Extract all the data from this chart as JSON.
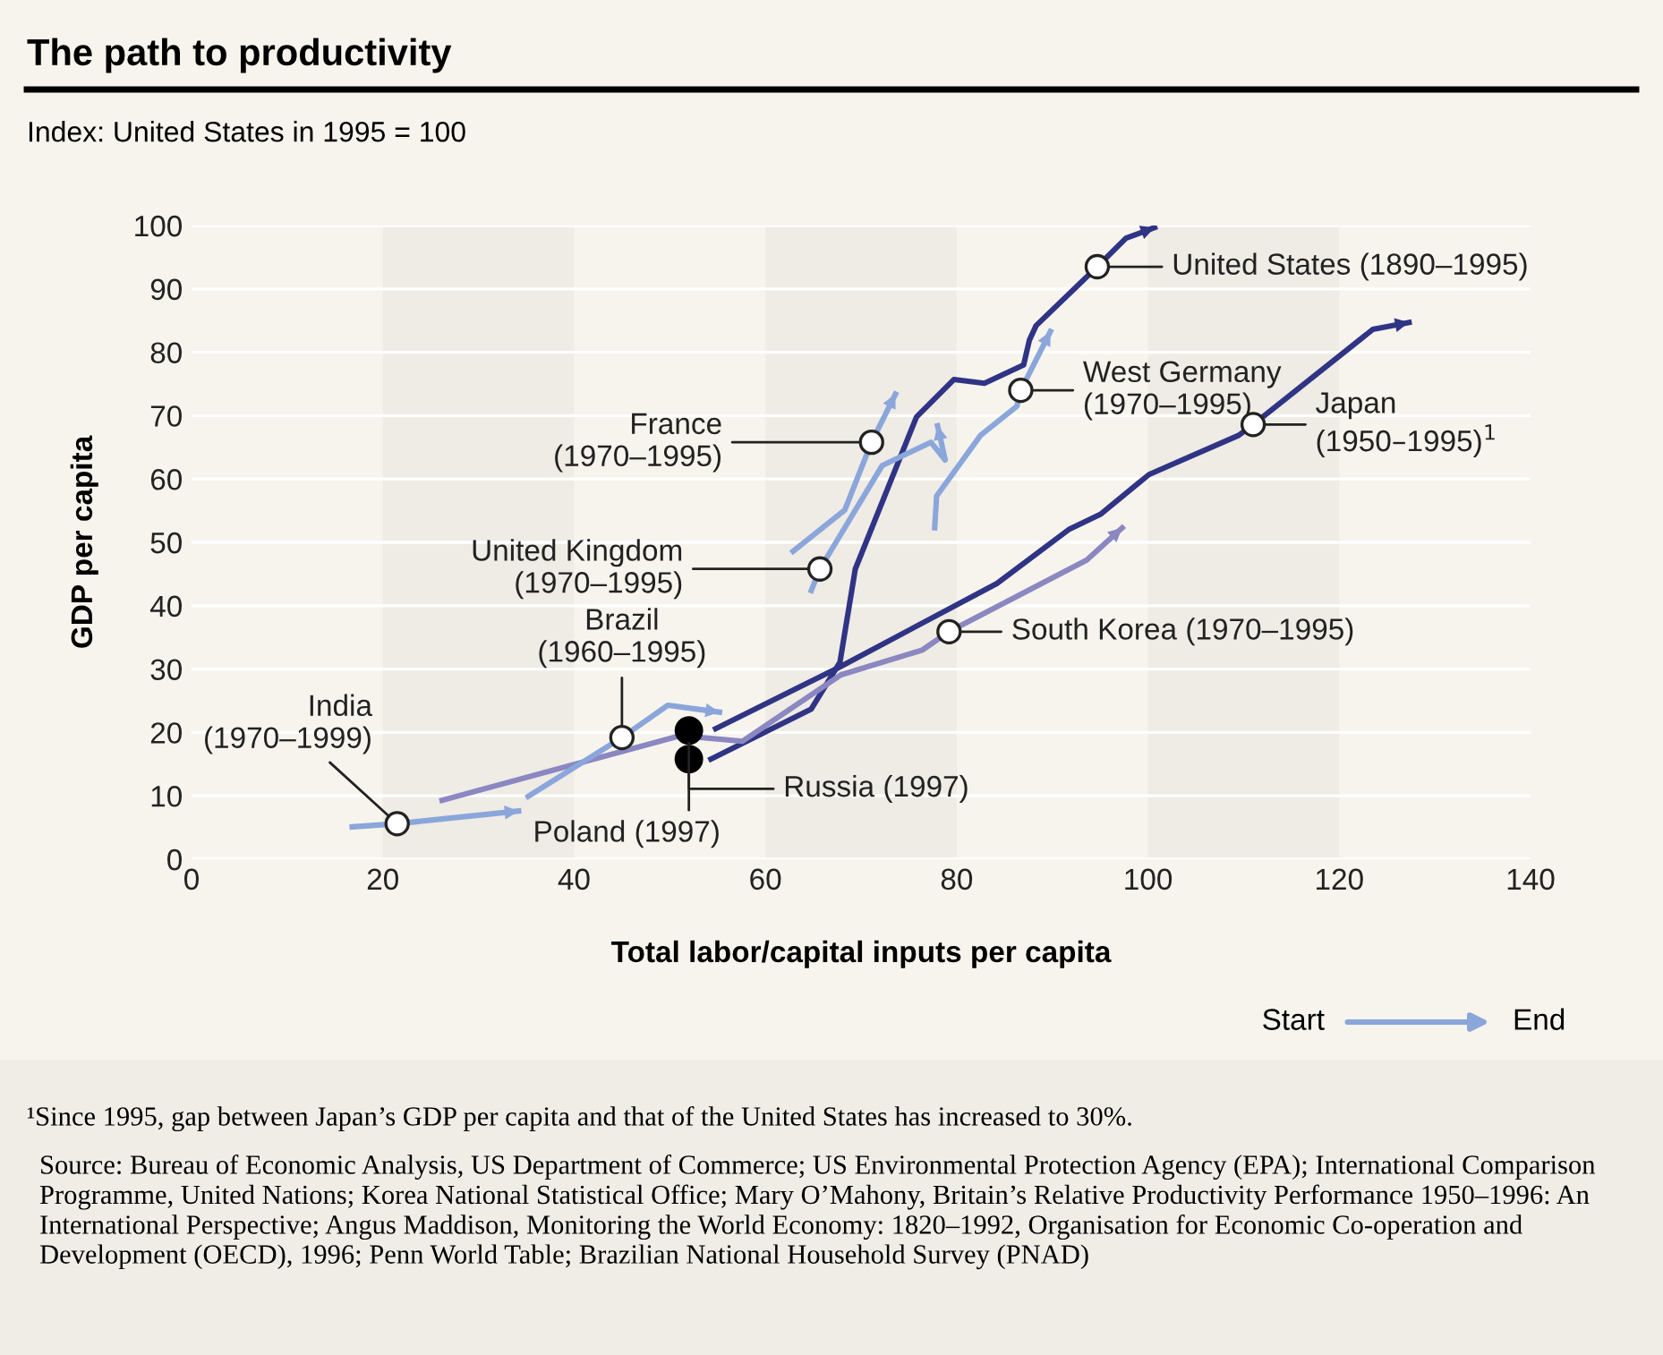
{
  "chart_data": {
    "type": "line",
    "title": "The path to productivity",
    "subtitle": "Index: United States in 1995 = 100",
    "xlabel": "Total labor/capital inputs per capita",
    "ylabel": "GDP per capita",
    "xlim": [
      0,
      140
    ],
    "ylim": [
      0,
      100
    ],
    "xticks": [
      0,
      20,
      40,
      60,
      80,
      100,
      120,
      140
    ],
    "yticks": [
      0,
      10,
      20,
      30,
      40,
      50,
      60,
      70,
      80,
      90,
      100
    ],
    "grid": "y",
    "bands": [
      {
        "axis": "x",
        "from": 20,
        "to": 40,
        "color": "#efebe5"
      },
      {
        "axis": "x",
        "from": 60,
        "to": 80,
        "color": "#efebe5"
      },
      {
        "axis": "x",
        "from": 100,
        "to": 120,
        "color": "#efebe5"
      }
    ],
    "series": [
      {
        "color": "#2f3485",
        "x": [
          54.3,
          64.8,
          67.8,
          69.4,
          75.8,
          79.7,
          82.9,
          87.0,
          87.6,
          88.3,
          94.7,
          97.7,
          100.7
        ],
        "values": [
          15.8,
          23.7,
          31.1,
          45.8,
          69.8,
          75.7,
          75.1,
          78.0,
          81.9,
          84.2,
          93.5,
          98.0,
          99.7
        ]
      },
      {
        "color": "#2f3485",
        "x": [
          54.8,
          67.6,
          84.2,
          91.7,
          95.1,
          100.1,
          109.5,
          111.0,
          123.5,
          127.3
        ],
        "values": [
          20.6,
          30.2,
          43.5,
          52.0,
          54.5,
          60.7,
          66.9,
          68.6,
          83.6,
          84.7
        ]
      },
      {
        "color": "#8b87c1",
        "x": [
          26.2,
          51.1,
          57.6,
          67.9,
          76.4,
          79.2,
          93.6,
          97.3
        ],
        "values": [
          9.3,
          19.5,
          18.6,
          29.1,
          33.0,
          35.9,
          47.2,
          52.3
        ]
      },
      {
        "color": "#8aa6da",
        "x": [
          16.8,
          21.5,
          34.2
        ],
        "values": [
          5.1,
          5.6,
          7.6
        ]
      },
      {
        "color": "#8aa6da",
        "x": [
          35.2,
          45.0,
          49.8,
          55.2
        ],
        "values": [
          9.9,
          19.2,
          24.3,
          23.2
        ]
      },
      {
        "color": "#8aa6da",
        "x": [
          64.8,
          65.7,
          72.2,
          77.3,
          78.8,
          78.0
        ],
        "values": [
          42.4,
          45.8,
          62.1,
          65.8,
          63.0,
          68.4
        ]
      },
      {
        "color": "#8aa6da",
        "x": [
          62.9,
          68.3,
          71.1,
          73.6
        ],
        "values": [
          48.6,
          55.1,
          65.8,
          73.4
        ]
      },
      {
        "color": "#8aa6da",
        "x": [
          77.7,
          77.9,
          82.5,
          86.3,
          86.7,
          89.8
        ],
        "values": [
          52.3,
          57.3,
          66.9,
          71.5,
          74.0,
          83.3
        ]
      },
      {
        "type": "scatter",
        "color": "#000000",
        "x": [
          52.0,
          52.0
        ],
        "values": [
          20.3,
          15.8
        ]
      }
    ],
    "annotations": [
      {
        "text": "United States (1890–1995)",
        "x": 94.7,
        "y": 93.5
      },
      {
        "text": "West Germany\n(1970–1995)",
        "x": 86.7,
        "y": 74.0
      },
      {
        "text": "Japan\n(1950–1995)$^{1}$",
        "x": 111.0,
        "y": 68.6
      },
      {
        "text": "France\n(1970–1995)",
        "x": 71.1,
        "y": 65.8
      },
      {
        "text": "United Kingdom\n(1970–1995)",
        "x": 65.7,
        "y": 45.8
      },
      {
        "text": "South Korea (1970–1995)",
        "x": 79.2,
        "y": 35.9
      },
      {
        "text": "Brazil\n(1960–1995)",
        "x": 45.0,
        "y": 19.2
      },
      {
        "text": "India\n(1970–1999)",
        "x": 21.5,
        "y": 5.6
      },
      {
        "text": "Poland (1997)",
        "x": 52.0,
        "y": 20.3
      },
      {
        "text": "Russia (1997)",
        "x": 52.0,
        "y": 15.8
      },
      "Start",
      "End",
      "¹Since 1995, gap between Japan’s GDP per capita and that of the United States has increased to 30%.",
      "Source: Bureau of Economic Analysis, US Department of Commerce; US Environmental Protection Agency (EPA); International Comparison Programme, United Nations; Korea National Statistical Office; Mary O’Mahony, Britain’s Relative Productivity Performance 1950–1996: An International Perspective; Angus Maddison, Monitoring the World Economy: 1820–1992, Organisation for Economic Co-operation and Development (OECD), 1996; Penn World Table; Brazilian National Household Survey (PNAD)"
    ]
  }
}
